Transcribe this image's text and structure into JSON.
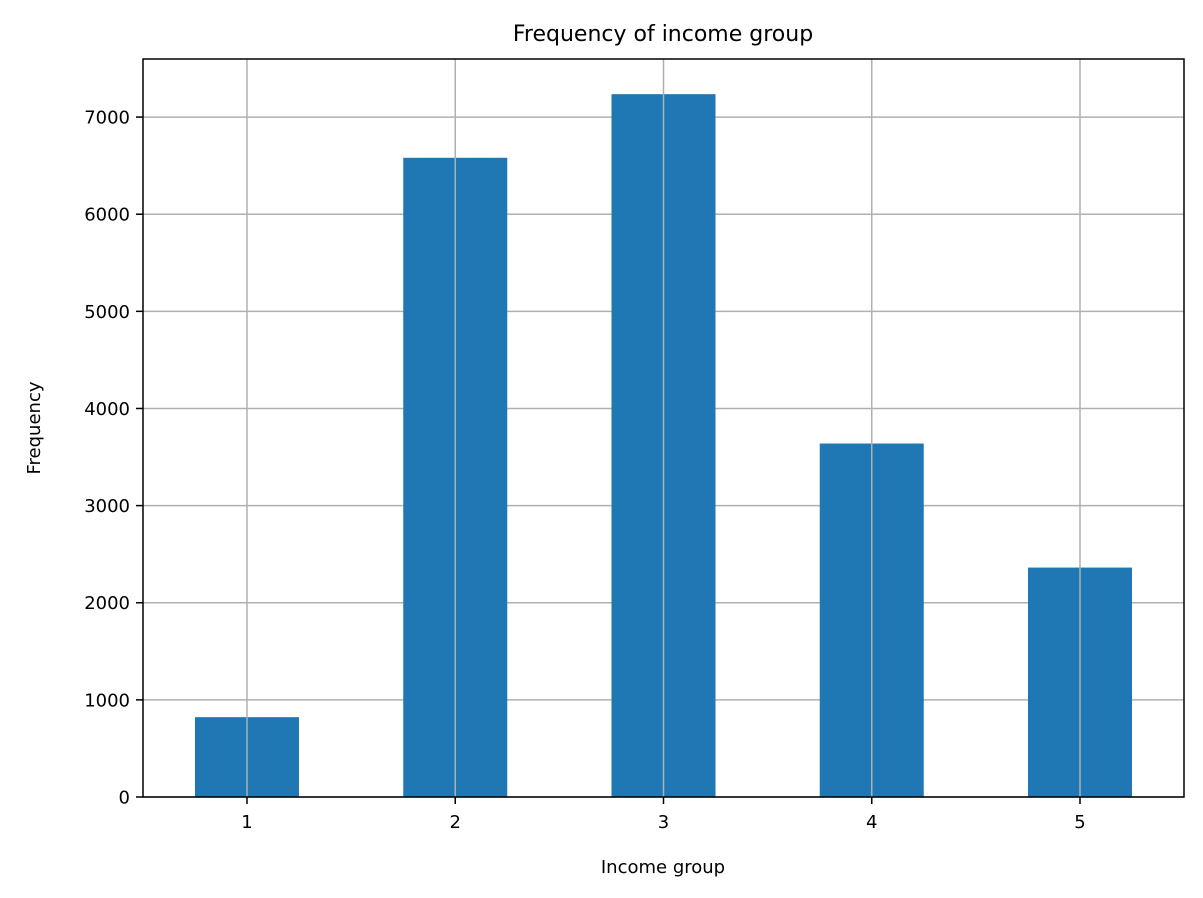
{
  "chart_data": {
    "type": "bar",
    "title": "Frequency of income group",
    "xlabel": "Income group",
    "ylabel": "Frequency",
    "categories": [
      "1",
      "2",
      "3",
      "4",
      "5"
    ],
    "values": [
      822,
      6581,
      7236,
      3639,
      2362
    ],
    "ylim": [
      0,
      7598
    ],
    "yticks": [
      0,
      1000,
      2000,
      3000,
      4000,
      5000,
      6000,
      7000
    ],
    "grid": true,
    "bar_color": "#1f77b4",
    "grid_color": "#b0b0b0"
  }
}
